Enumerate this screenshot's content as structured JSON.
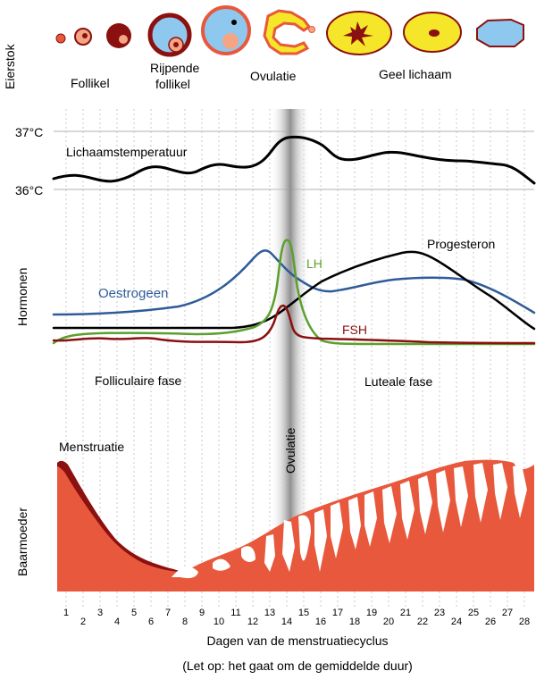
{
  "labels": {
    "ovary_section": "Eierstok",
    "hormones_section": "Hormonen",
    "uterus_section": "Baarmoeder",
    "follicle": "Follikel",
    "ripening_follicle_line1": "Rijpende",
    "ripening_follicle_line2": "follikel",
    "ovulation_top": "Ovulatie",
    "corpus_luteum": "Geel lichaam",
    "temp_high": "37°C",
    "temp_low": "36°C",
    "body_temperature": "Lichaamstemperatuur",
    "lh": "LH",
    "estrogen": "Oestrogeen",
    "progesterone": "Progesteron",
    "fsh": "FSH",
    "follicular_phase": "Folliculaire fase",
    "luteal_phase": "Luteale fase",
    "ovulation_band": "Ovulatie",
    "menstruation": "Menstruatie",
    "x_axis_title": "Dagen van de menstruatiecyclus",
    "footnote": "(Let op: het gaat om de gemiddelde duur)"
  },
  "chart_data": {
    "type": "line",
    "x_days": [
      1,
      2,
      3,
      4,
      5,
      6,
      7,
      8,
      9,
      10,
      11,
      12,
      13,
      14,
      15,
      16,
      17,
      18,
      19,
      20,
      21,
      22,
      23,
      24,
      25,
      26,
      27,
      28
    ],
    "y_ticks": [
      "36°C",
      "37°C"
    ],
    "series": [
      {
        "name": "Lichaamstemperatuur",
        "color": "#000000"
      },
      {
        "name": "Oestrogeen",
        "color": "#2f5c99"
      },
      {
        "name": "LH",
        "color": "#5aa02c"
      },
      {
        "name": "Progesteron",
        "color": "#000000"
      },
      {
        "name": "FSH",
        "color": "#8b1010"
      }
    ]
  },
  "colors": {
    "uterus": "#e8583c",
    "menstrual_blood": "#8b1010",
    "ovulation_band": "#a0a0a0",
    "corpus_luteum": "#f5e629",
    "follicle_fluid": "#8fc8ee",
    "follicle_wall": "#8b1010",
    "oocyte": "#f4a583"
  }
}
